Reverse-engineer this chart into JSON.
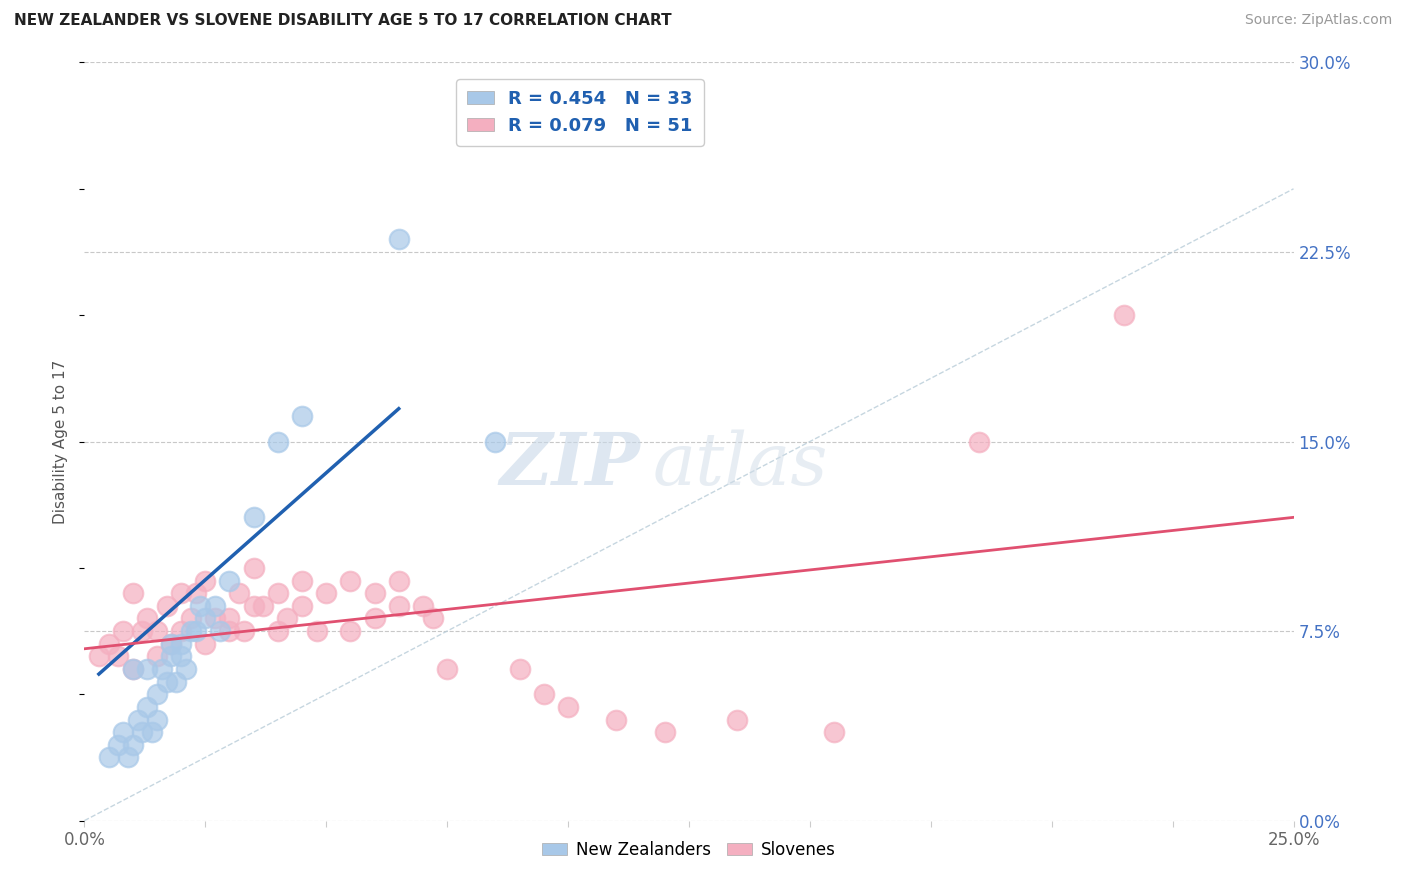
{
  "title": "NEW ZEALANDER VS SLOVENE DISABILITY AGE 5 TO 17 CORRELATION CHART",
  "source": "Source: ZipAtlas.com",
  "ylabel": "Disability Age 5 to 17",
  "xlim": [
    0.0,
    0.25
  ],
  "ylim": [
    0.0,
    0.3
  ],
  "xticks": [
    0.0,
    0.025,
    0.05,
    0.075,
    0.1,
    0.125,
    0.15,
    0.175,
    0.2,
    0.225,
    0.25
  ],
  "yticks": [
    0.0,
    0.075,
    0.15,
    0.225,
    0.3
  ],
  "ytick_labels_right": [
    "0.0%",
    "7.5%",
    "15.0%",
    "22.5%",
    "30.0%"
  ],
  "xtick_labels_show": [
    "0.0%",
    "25.0%"
  ],
  "R_nz": 0.454,
  "N_nz": 33,
  "R_sl": 0.079,
  "N_sl": 51,
  "nz_color": "#a8c8e8",
  "sl_color": "#f4afc0",
  "nz_line_color": "#2060b0",
  "sl_line_color": "#e05070",
  "diagonal_color": "#b8ccd8",
  "background_color": "#ffffff",
  "grid_color": "#c8c8c8",
  "watermark_zip": "ZIP",
  "watermark_atlas": "atlas",
  "nz_scatter_x": [
    0.005,
    0.007,
    0.008,
    0.009,
    0.01,
    0.01,
    0.011,
    0.012,
    0.013,
    0.013,
    0.014,
    0.015,
    0.015,
    0.016,
    0.017,
    0.018,
    0.018,
    0.019,
    0.02,
    0.02,
    0.021,
    0.022,
    0.023,
    0.024,
    0.025,
    0.027,
    0.028,
    0.03,
    0.035,
    0.04,
    0.045,
    0.065,
    0.085
  ],
  "nz_scatter_y": [
    0.025,
    0.03,
    0.035,
    0.025,
    0.03,
    0.06,
    0.04,
    0.035,
    0.045,
    0.06,
    0.035,
    0.05,
    0.04,
    0.06,
    0.055,
    0.065,
    0.07,
    0.055,
    0.07,
    0.065,
    0.06,
    0.075,
    0.075,
    0.085,
    0.08,
    0.085,
    0.075,
    0.095,
    0.12,
    0.15,
    0.16,
    0.23,
    0.15
  ],
  "sl_scatter_x": [
    0.003,
    0.005,
    0.007,
    0.008,
    0.01,
    0.01,
    0.012,
    0.013,
    0.015,
    0.015,
    0.017,
    0.018,
    0.02,
    0.02,
    0.022,
    0.023,
    0.025,
    0.025,
    0.027,
    0.03,
    0.03,
    0.032,
    0.033,
    0.035,
    0.035,
    0.037,
    0.04,
    0.04,
    0.042,
    0.045,
    0.045,
    0.048,
    0.05,
    0.055,
    0.055,
    0.06,
    0.06,
    0.065,
    0.065,
    0.07,
    0.072,
    0.075,
    0.09,
    0.095,
    0.1,
    0.11,
    0.12,
    0.135,
    0.155,
    0.185,
    0.215
  ],
  "sl_scatter_y": [
    0.065,
    0.07,
    0.065,
    0.075,
    0.06,
    0.09,
    0.075,
    0.08,
    0.065,
    0.075,
    0.085,
    0.07,
    0.075,
    0.09,
    0.08,
    0.09,
    0.07,
    0.095,
    0.08,
    0.075,
    0.08,
    0.09,
    0.075,
    0.085,
    0.1,
    0.085,
    0.075,
    0.09,
    0.08,
    0.085,
    0.095,
    0.075,
    0.09,
    0.075,
    0.095,
    0.08,
    0.09,
    0.085,
    0.095,
    0.085,
    0.08,
    0.06,
    0.06,
    0.05,
    0.045,
    0.04,
    0.035,
    0.04,
    0.035,
    0.15,
    0.2
  ],
  "nz_line_x": [
    0.003,
    0.065
  ],
  "nz_line_y": [
    0.058,
    0.163
  ],
  "sl_line_x": [
    0.0,
    0.25
  ],
  "sl_line_y": [
    0.068,
    0.12
  ]
}
